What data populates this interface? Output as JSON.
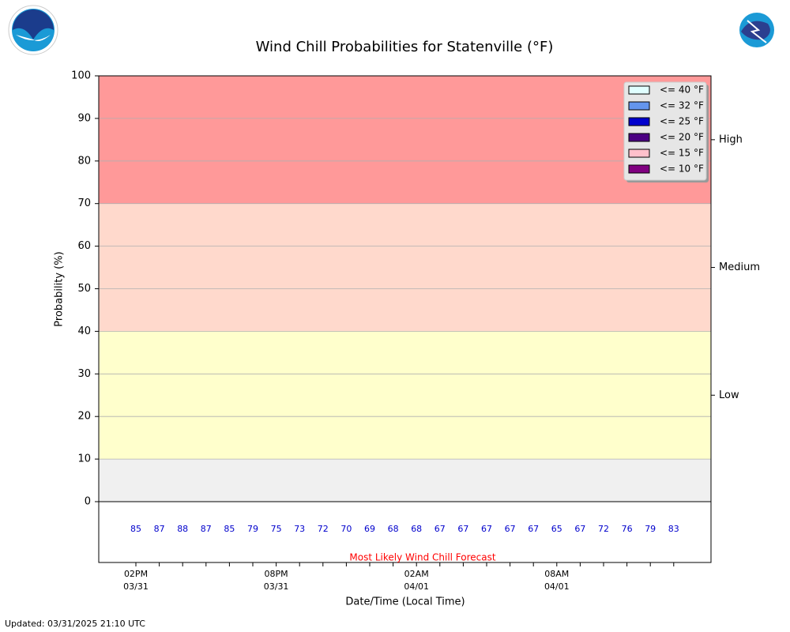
{
  "chart_data": {
    "type": "bar",
    "title": "Wind Chill Probabilities for Statenville (°F)",
    "ylabel": "Probability (%)",
    "xlabel": "Date/Time (Local Time)",
    "updated": "Updated: 03/31/2025 21:10 UTC",
    "ylim": [
      0,
      100
    ],
    "yticks": [
      0,
      10,
      20,
      30,
      40,
      50,
      60,
      70,
      80,
      90,
      100
    ],
    "grid": true,
    "y2lim": [
      0,
      100
    ],
    "y2ticks": [
      {
        "value": 25,
        "label": "Low"
      },
      {
        "value": 55,
        "label": "Medium"
      },
      {
        "value": 85,
        "label": "High"
      }
    ],
    "bands": [
      {
        "from": 0,
        "to": 10,
        "color": "#f0f0f0"
      },
      {
        "from": 10,
        "to": 40,
        "color": "#ffffcc"
      },
      {
        "from": 40,
        "to": 70,
        "color": "#ffd9cc"
      },
      {
        "from": 70,
        "to": 100,
        "color": "#ff9999"
      }
    ],
    "categories": [
      "02PM\n03/31",
      null,
      null,
      null,
      null,
      null,
      "08PM\n03/31",
      null,
      null,
      null,
      null,
      null,
      "02AM\n04/01",
      null,
      null,
      null,
      null,
      null,
      "08AM\n04/01",
      null,
      null,
      null,
      null,
      null
    ],
    "legend": "upper right",
    "series": [
      {
        "name": "<= 40 °F",
        "color": "#e0ffff",
        "values": [
          0,
          0,
          0,
          0,
          0,
          0,
          0,
          0,
          0,
          0,
          0,
          0,
          0,
          0,
          0,
          0,
          0,
          0,
          0,
          0,
          0,
          0,
          0,
          0
        ]
      },
      {
        "name": "<= 32 °F",
        "color": "#6495ed",
        "values": [
          0,
          0,
          0,
          0,
          0,
          0,
          0,
          0,
          0,
          0,
          0,
          0,
          0,
          0,
          0,
          0,
          0,
          0,
          0,
          0,
          0,
          0,
          0,
          0
        ]
      },
      {
        "name": "<= 25 °F",
        "color": "#0000cd",
        "values": [
          0,
          0,
          0,
          0,
          0,
          0,
          0,
          0,
          0,
          0,
          0,
          0,
          0,
          0,
          0,
          0,
          0,
          0,
          0,
          0,
          0,
          0,
          0,
          0
        ]
      },
      {
        "name": "<= 20 °F",
        "color": "#4b0082",
        "values": [
          0,
          0,
          0,
          0,
          0,
          0,
          0,
          0,
          0,
          0,
          0,
          0,
          0,
          0,
          0,
          0,
          0,
          0,
          0,
          0,
          0,
          0,
          0,
          0
        ]
      },
      {
        "name": "<= 15 °F",
        "color": "#ffc0cb",
        "values": [
          0,
          0,
          0,
          0,
          0,
          0,
          0,
          0,
          0,
          0,
          0,
          0,
          0,
          0,
          0,
          0,
          0,
          0,
          0,
          0,
          0,
          0,
          0,
          0
        ]
      },
      {
        "name": "<= 10 °F",
        "color": "#800080",
        "values": [
          0,
          0,
          0,
          0,
          0,
          0,
          0,
          0,
          0,
          0,
          0,
          0,
          0,
          0,
          0,
          0,
          0,
          0,
          0,
          0,
          0,
          0,
          0,
          0
        ]
      }
    ],
    "most_likely": {
      "name": "Most Likely Wind Chill Forecast",
      "color": "#0000cc",
      "label_color": "#ff0000",
      "values": [
        85,
        87,
        88,
        87,
        85,
        79,
        75,
        73,
        72,
        70,
        69,
        68,
        68,
        67,
        67,
        67,
        67,
        67,
        65,
        67,
        72,
        76,
        79,
        83
      ]
    }
  }
}
